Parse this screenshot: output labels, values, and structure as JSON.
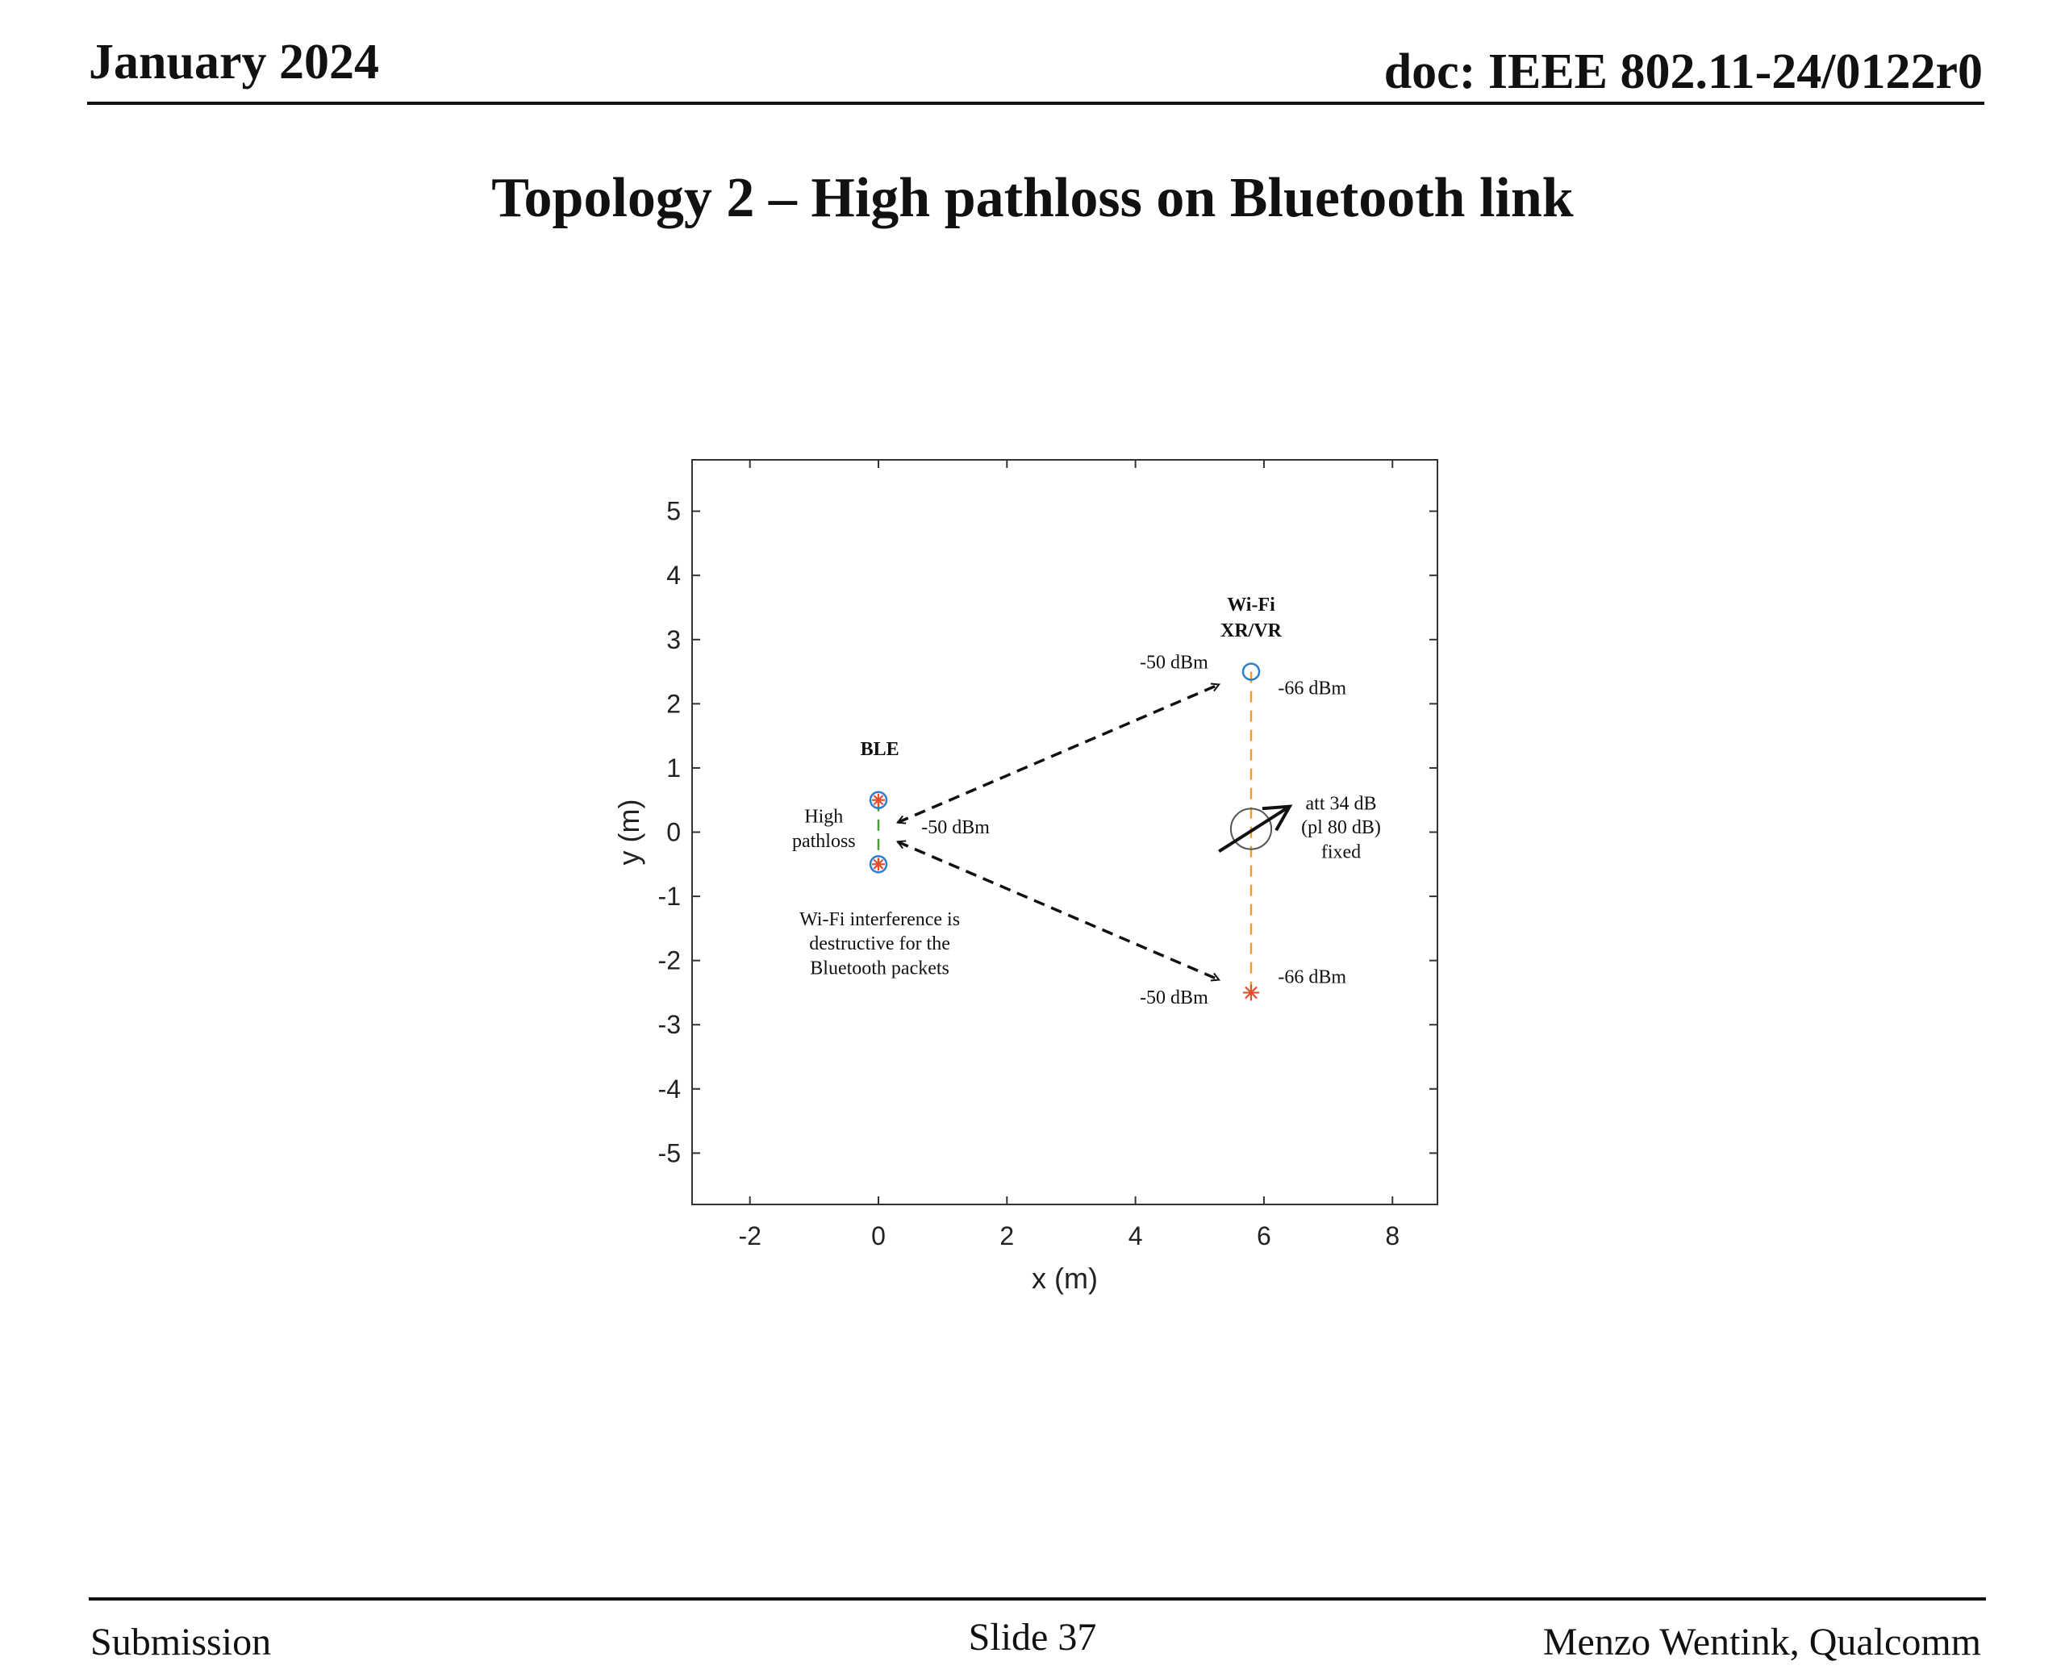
{
  "header": {
    "date": "January 2024",
    "doc": "doc: IEEE 802.11-24/0122r0"
  },
  "slide_title": "Topology 2 – High pathloss on Bluetooth link",
  "chart_data": {
    "type": "scatter",
    "title": "",
    "xlabel": "x (m)",
    "ylabel": "y (m)",
    "xlim": [
      -2.9,
      8.7
    ],
    "ylim": [
      -5.8,
      5.8
    ],
    "xticks": [
      -2,
      0,
      2,
      4,
      6,
      8
    ],
    "yticks": [
      -5,
      -4,
      -3,
      -2,
      -1,
      0,
      1,
      2,
      3,
      4,
      5
    ],
    "grid": false,
    "points": [
      {
        "x": 0,
        "y": 0.5,
        "marker": "circle-star"
      },
      {
        "x": 0,
        "y": -0.5,
        "marker": "circle-star"
      },
      {
        "x": 5.8,
        "y": 2.5,
        "marker": "circle"
      },
      {
        "x": 5.8,
        "y": -2.5,
        "marker": "star"
      }
    ],
    "lines": [
      {
        "x": [
          0,
          0
        ],
        "y": [
          0.5,
          -0.5
        ],
        "style": "dash-green"
      },
      {
        "x": [
          5.8,
          5.8
        ],
        "y": [
          2.5,
          -2.5
        ],
        "style": "dash-orange"
      }
    ],
    "arrows": [
      {
        "x": [
          0.3,
          5.3
        ],
        "y": [
          0.15,
          2.3
        ],
        "heads": "both"
      },
      {
        "x": [
          0.3,
          5.3
        ],
        "y": [
          -0.15,
          -2.3
        ],
        "heads": "both"
      },
      {
        "x": [
          5.3,
          6.4
        ],
        "y": [
          -0.3,
          0.4
        ],
        "heads": "end"
      }
    ],
    "attenuator": {
      "x": 5.8,
      "y": 0.05,
      "r": 0.3
    },
    "annotations": [
      {
        "text": "BLE",
        "x": 0.02,
        "y": 1.2,
        "bold": true
      },
      {
        "text": "Wi-Fi",
        "x": 5.8,
        "y": 3.45,
        "bold": true
      },
      {
        "text": "XR/VR",
        "x": 5.8,
        "y": 3.05,
        "bold": true
      },
      {
        "text": "-50 dBm",
        "x": 4.6,
        "y": 2.55
      },
      {
        "text": "-66 dBm",
        "x": 6.75,
        "y": 2.15
      },
      {
        "text": "High",
        "x": -0.85,
        "y": 0.15
      },
      {
        "text": "pathloss",
        "x": -0.85,
        "y": -0.23
      },
      {
        "text": "-50 dBm",
        "x": 1.2,
        "y": -0.02
      },
      {
        "text": "att 34 dB",
        "x": 7.2,
        "y": 0.35
      },
      {
        "text": "(pl 80 dB)",
        "x": 7.2,
        "y": -0.02
      },
      {
        "text": "fixed",
        "x": 7.2,
        "y": -0.4
      },
      {
        "text": "Wi-Fi  interference is",
        "x": 0.02,
        "y": -1.45
      },
      {
        "text": "destructive for the",
        "x": 0.02,
        "y": -1.83
      },
      {
        "text": "Bluetooth packets",
        "x": 0.02,
        "y": -2.21
      },
      {
        "text": "-66 dBm",
        "x": 6.75,
        "y": -2.35
      },
      {
        "text": "-50 dBm",
        "x": 4.6,
        "y": -2.67
      }
    ]
  },
  "footer": {
    "left": "Submission",
    "center": "Slide 37",
    "right": "Menzo Wentink, Qualcomm"
  }
}
